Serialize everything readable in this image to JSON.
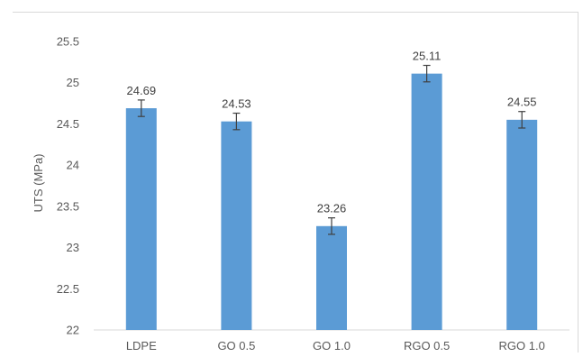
{
  "chart_data": {
    "type": "bar",
    "title": "",
    "xlabel": "",
    "ylabel": "UTS (MPa)",
    "categories": [
      "LDPE",
      "GO 0.5",
      "GO 1.0",
      "RGO 0.5",
      "RGO 1.0"
    ],
    "values": [
      24.69,
      24.53,
      23.26,
      25.11,
      24.55
    ],
    "data_labels": [
      "24.69",
      "24.53",
      "23.26",
      "25.11",
      "24.55"
    ],
    "error": [
      0.1,
      0.1,
      0.1,
      0.1,
      0.1
    ],
    "ylim": [
      22,
      25.5
    ],
    "yticks": [
      22,
      22.5,
      23,
      23.5,
      24,
      24.5,
      25,
      25.5
    ],
    "ytick_labels": [
      "22",
      "22.5",
      "23",
      "23.5",
      "24",
      "24.5",
      "25",
      "25.5"
    ],
    "grid": false,
    "legend": "none",
    "bar_color": "#5b9bd5",
    "error_bar_color": "#404040"
  }
}
